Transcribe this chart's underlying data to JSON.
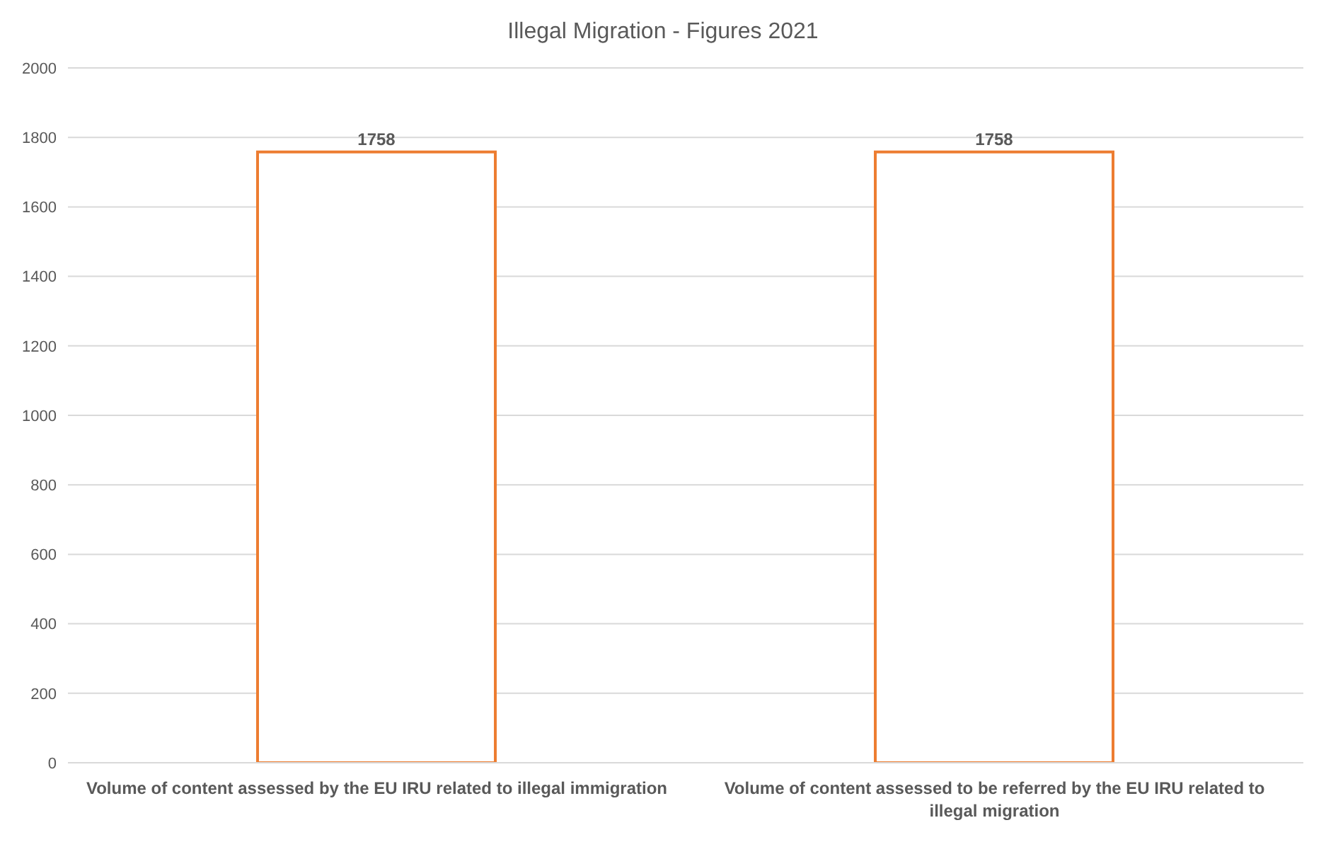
{
  "chart_data": {
    "type": "bar",
    "title": "Illegal Migration - Figures 2021",
    "categories": [
      "Volume of content assessed by the EU IRU related to illegal immigration",
      "Volume of content assessed to be referred by the EU IRU related to illegal migration"
    ],
    "values": [
      1758,
      1758
    ],
    "color": "#ed7d31",
    "ylim": [
      0,
      2000
    ],
    "yticks": [
      0,
      200,
      400,
      600,
      800,
      1000,
      1200,
      1400,
      1600,
      1800,
      2000
    ],
    "grid": "y",
    "data_labels": true
  }
}
